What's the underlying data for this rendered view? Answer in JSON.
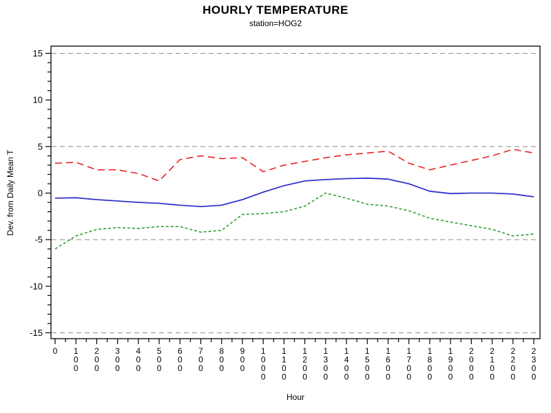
{
  "header": {
    "title": "HOURLY TEMPERATURE",
    "subtitle": "station=HOG2"
  },
  "chart_data": {
    "type": "line",
    "title": "HOURLY TEMPERATURE",
    "subtitle": "station=HOG2",
    "xlabel": "Hour",
    "ylabel": "Dev. from Daily Mean T",
    "x": [
      0,
      1,
      2,
      3,
      4,
      5,
      6,
      7,
      8,
      9,
      10,
      11,
      12,
      13,
      14,
      15,
      16,
      17,
      18,
      19,
      20,
      21,
      22,
      23
    ],
    "x_tick_labels": [
      "0",
      "100",
      "200",
      "300",
      "400",
      "500",
      "600",
      "700",
      "800",
      "900",
      "1000",
      "1100",
      "1200",
      "1300",
      "1400",
      "1500",
      "1600",
      "1700",
      "1800",
      "1900",
      "2000",
      "2100",
      "2200",
      "2300"
    ],
    "xlim": [
      0,
      23
    ],
    "ylim": [
      -15,
      15
    ],
    "y_ticks_major": [
      -15,
      -10,
      -5,
      0,
      5,
      10,
      15
    ],
    "y_minor_tick_step": 1,
    "x_minor_tick_step": 0.5,
    "reference_lines_y": [
      15,
      5,
      -5,
      -15
    ],
    "grid": "horizontal dashed reference lines only",
    "legend_position": "none",
    "frame_color": "#000000",
    "reference_line_color": "#8c8c8c",
    "series": [
      {
        "name": "upper-red-dashed",
        "color": "#e62222",
        "style": "dashed-long",
        "values": [
          3.2,
          3.3,
          2.5,
          2.5,
          2.1,
          1.3,
          3.6,
          4.0,
          3.7,
          3.8,
          2.3,
          3.0,
          3.4,
          3.8,
          4.1,
          4.3,
          4.5,
          3.2,
          2.5,
          3.0,
          3.5,
          4.0,
          4.7,
          4.3
        ]
      },
      {
        "name": "middle-blue-solid",
        "color": "#3232cd",
        "style": "solid",
        "values": [
          -0.55,
          -0.5,
          -0.7,
          -0.85,
          -1.0,
          -1.1,
          -1.3,
          -1.45,
          -1.3,
          -0.7,
          0.1,
          0.8,
          1.3,
          1.45,
          1.55,
          1.6,
          1.5,
          1.0,
          0.2,
          -0.05,
          0.0,
          0.0,
          -0.1,
          -0.4
        ]
      },
      {
        "name": "lower-green-dashed",
        "color": "#2f9e2f",
        "style": "dashed-short",
        "values": [
          -6.0,
          -4.6,
          -3.9,
          -3.7,
          -3.8,
          -3.6,
          -3.6,
          -4.2,
          -4.0,
          -2.3,
          -2.2,
          -2.0,
          -1.4,
          0.0,
          -0.55,
          -1.2,
          -1.4,
          -1.9,
          -2.7,
          -3.1,
          -3.5,
          -3.9,
          -4.6,
          -4.4
        ]
      }
    ]
  }
}
